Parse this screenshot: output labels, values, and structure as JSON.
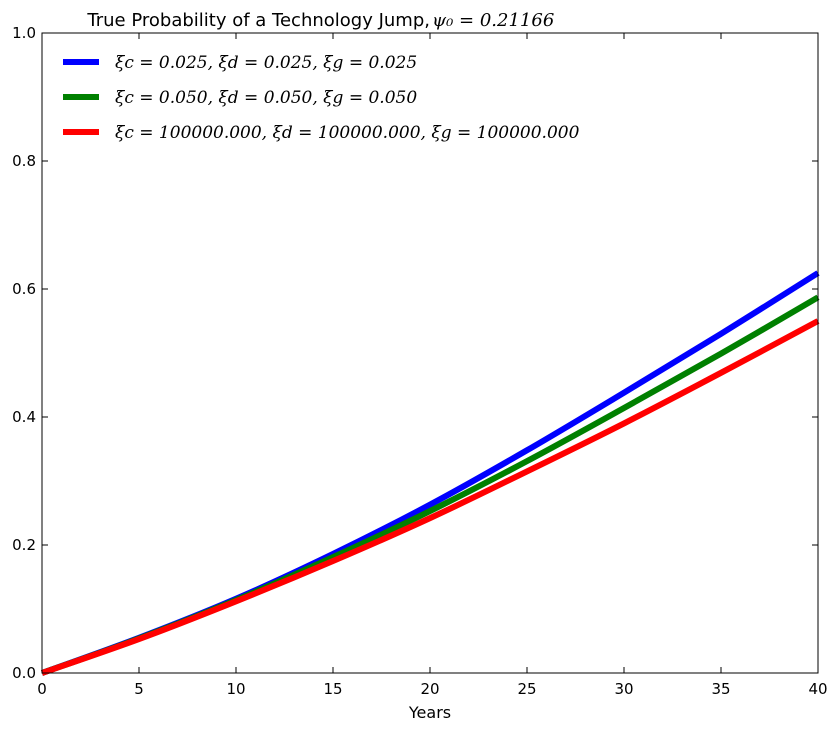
{
  "chart_data": {
    "type": "line",
    "title": "True Probability of a Technology Jump, ",
    "title_math": "ψ₀ = 0.21166",
    "xlabel": "Years",
    "ylabel": "",
    "xlim": [
      0,
      40
    ],
    "ylim": [
      0,
      1.0
    ],
    "xticks": [
      0,
      5,
      10,
      15,
      20,
      25,
      30,
      35,
      40
    ],
    "yticks": [
      0.0,
      0.2,
      0.4,
      0.6,
      0.8,
      1.0
    ],
    "xtick_labels": [
      "0",
      "5",
      "10",
      "15",
      "20",
      "25",
      "30",
      "35",
      "40"
    ],
    "ytick_labels": [
      "0.0",
      "0.2",
      "0.4",
      "0.6",
      "0.8",
      "1.0"
    ],
    "grid": false,
    "legend_position": "top-left",
    "x": [
      0,
      5,
      10,
      15,
      20,
      25,
      30,
      35,
      40
    ],
    "series": [
      {
        "name": "ξc = 0.025, ξd = 0.025, ξg = 0.025",
        "color": "#0000ff",
        "values": [
          0.0,
          0.055,
          0.116,
          0.186,
          0.263,
          0.348,
          0.438,
          0.53,
          0.625
        ]
      },
      {
        "name": "ξc = 0.050, ξd = 0.050, ξg = 0.050",
        "color": "#008000",
        "values": [
          0.0,
          0.054,
          0.114,
          0.181,
          0.253,
          0.331,
          0.414,
          0.499,
          0.587
        ]
      },
      {
        "name": "ξc = 100000.000, ξd = 100000.000, ξg = 100000.000",
        "color": "#ff0000",
        "values": [
          0.0,
          0.053,
          0.112,
          0.175,
          0.242,
          0.315,
          0.39,
          0.469,
          0.55
        ]
      }
    ]
  }
}
